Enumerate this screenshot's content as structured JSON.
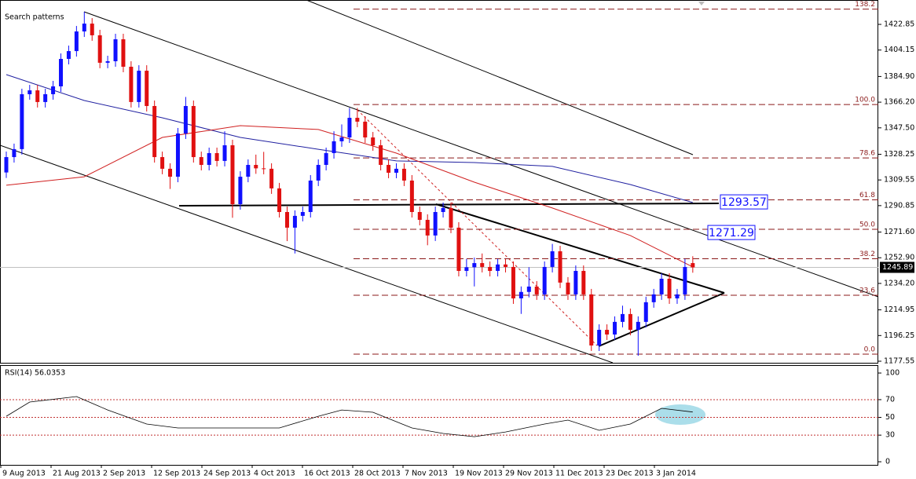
{
  "chart_data": {
    "type": "candlestick",
    "title": "Search patterns",
    "ylim": [
      1176.4,
      1440.6
    ],
    "yticks": [
      1422.85,
      1404.15,
      {
        "value": 1384.9,
        "label": "1384.90"
      },
      {
        "value": 1366.2,
        "label": "1366.20"
      },
      {
        "value": 1347.5,
        "label": "1347.50"
      },
      1328.25,
      1309.55,
      1290.85,
      {
        "value": 1271.6,
        "label": "1271.60"
      },
      {
        "value": 1252.9,
        "label": "1252.90"
      },
      {
        "value": 1234.2,
        "label": "1234.20"
      },
      1214.95,
      1196.25,
      1177.55
    ],
    "dates": [
      "9 Aug 2013",
      "21 Aug 2013",
      "2 Sep 2013",
      "12 Sep 2013",
      "24 Sep 2013",
      "4 Oct 2013",
      "16 Oct 2013",
      "28 Oct 2013",
      "7 Nov 2013",
      "19 Nov 2013",
      "29 Nov 2013",
      "11 Dec 2013",
      "23 Dec 2013",
      "3 Jan 2014"
    ],
    "up_color": "#1010ff",
    "down_color": "#e01010",
    "ohlc": [
      [
        1315.0,
        1330.2,
        1311.0,
        1326.2
      ],
      [
        1326.2,
        1336.0,
        1322.2,
        1332.0
      ],
      [
        1332.0,
        1376.0,
        1328.0,
        1372.0
      ],
      [
        1372.0,
        1378.8,
        1368.0,
        1374.8
      ],
      [
        1374.8,
        1378.8,
        1362.3,
        1366.3
      ],
      [
        1366.3,
        1376.0,
        1362.3,
        1372.0
      ],
      [
        1372.0,
        1381.7,
        1368.0,
        1377.7
      ],
      [
        1377.7,
        1401.7,
        1373.7,
        1397.7
      ],
      [
        1397.7,
        1407.4,
        1393.7,
        1403.4
      ],
      [
        1403.4,
        1421.7,
        1399.4,
        1417.7
      ],
      [
        1417.7,
        1432.0,
        1413.7,
        1423.4
      ],
      [
        1423.4,
        1427.4,
        1410.9,
        1414.9
      ],
      [
        1414.9,
        1418.9,
        1390.9,
        1394.9
      ],
      [
        1394.9,
        1400.0,
        1390.9,
        1396.0
      ],
      [
        1396.0,
        1416.0,
        1392.0,
        1412.0
      ],
      [
        1412.0,
        1416.0,
        1388.0,
        1392.0
      ],
      [
        1392.0,
        1396.0,
        1362.3,
        1366.3
      ],
      [
        1366.3,
        1393.1,
        1362.3,
        1389.1
      ],
      [
        1389.1,
        1393.1,
        1359.4,
        1363.4
      ],
      [
        1363.4,
        1367.4,
        1322.2,
        1326.2
      ],
      [
        1326.2,
        1330.2,
        1313.7,
        1317.7
      ],
      [
        1317.7,
        1321.7,
        1303.0,
        1311.9
      ],
      [
        1311.9,
        1347.4,
        1307.9,
        1343.4
      ],
      [
        1343.4,
        1370.0,
        1339.4,
        1363.4
      ],
      [
        1363.4,
        1367.4,
        1322.2,
        1326.2
      ],
      [
        1326.2,
        1330.2,
        1316.5,
        1320.5
      ],
      [
        1320.5,
        1333.1,
        1316.5,
        1329.1
      ],
      [
        1329.1,
        1333.1,
        1319.4,
        1323.4
      ],
      [
        1323.4,
        1345.0,
        1319.4,
        1334.8
      ],
      [
        1334.8,
        1338.8,
        1282.0,
        1291.9
      ],
      [
        1291.9,
        1315.9,
        1287.9,
        1311.9
      ],
      [
        1311.9,
        1324.5,
        1307.9,
        1320.5
      ],
      [
        1320.5,
        1328.0,
        1314.0,
        1318.0
      ],
      [
        1318.0,
        1330.0,
        1313.7,
        1317.7
      ],
      [
        1317.7,
        1321.7,
        1299.4,
        1303.4
      ],
      [
        1303.4,
        1307.4,
        1282.2,
        1286.2
      ],
      [
        1286.2,
        1290.2,
        1265.0,
        1274.8
      ],
      [
        1274.8,
        1287.4,
        1256.0,
        1283.4
      ],
      [
        1283.4,
        1290.2,
        1279.4,
        1286.2
      ],
      [
        1286.2,
        1313.1,
        1282.2,
        1309.1
      ],
      [
        1309.1,
        1324.5,
        1305.1,
        1320.5
      ],
      [
        1320.5,
        1333.1,
        1316.5,
        1329.1
      ],
      [
        1329.1,
        1345.0,
        1325.1,
        1337.7
      ],
      [
        1337.7,
        1350.0,
        1333.7,
        1340.5
      ],
      [
        1340.5,
        1362.0,
        1336.5,
        1354.8
      ],
      [
        1354.8,
        1362.0,
        1348.0,
        1352.0
      ],
      [
        1352.0,
        1356.0,
        1336.5,
        1340.5
      ],
      [
        1340.5,
        1344.5,
        1330.8,
        1334.8
      ],
      [
        1334.8,
        1338.8,
        1316.5,
        1320.5
      ],
      [
        1320.5,
        1324.5,
        1310.8,
        1314.8
      ],
      [
        1314.8,
        1321.7,
        1310.8,
        1317.7
      ],
      [
        1317.7,
        1321.7,
        1305.1,
        1309.1
      ],
      [
        1309.1,
        1313.1,
        1282.2,
        1286.2
      ],
      [
        1286.2,
        1290.2,
        1276.5,
        1280.5
      ],
      [
        1280.5,
        1284.5,
        1262.0,
        1269.1
      ],
      [
        1269.1,
        1290.2,
        1265.1,
        1286.2
      ],
      [
        1286.2,
        1293.1,
        1282.2,
        1289.1
      ],
      [
        1289.1,
        1293.1,
        1270.8,
        1274.8
      ],
      [
        1274.8,
        1278.8,
        1239.3,
        1243.3
      ],
      [
        1243.3,
        1252.0,
        1239.3,
        1246.0
      ],
      [
        1246.0,
        1253.0,
        1232.0,
        1249.0
      ],
      [
        1249.0,
        1256.0,
        1242.2,
        1246.2
      ],
      [
        1246.2,
        1250.2,
        1239.3,
        1243.3
      ],
      [
        1243.3,
        1252.0,
        1239.3,
        1248.0
      ],
      [
        1248.0,
        1252.0,
        1242.2,
        1246.2
      ],
      [
        1246.2,
        1250.2,
        1219.3,
        1223.3
      ],
      [
        1223.3,
        1232.0,
        1212.0,
        1228.0
      ],
      [
        1228.0,
        1246.0,
        1224.0,
        1231.9
      ],
      [
        1231.9,
        1235.9,
        1222.2,
        1226.2
      ],
      [
        1226.2,
        1250.2,
        1222.2,
        1246.2
      ],
      [
        1246.2,
        1263.0,
        1242.2,
        1257.6
      ],
      [
        1257.6,
        1261.6,
        1230.8,
        1234.8
      ],
      [
        1234.8,
        1238.8,
        1222.2,
        1226.2
      ],
      [
        1226.2,
        1247.3,
        1222.2,
        1243.3
      ],
      [
        1243.3,
        1247.3,
        1222.2,
        1226.2
      ],
      [
        1226.2,
        1230.2,
        1185.0,
        1189.0
      ],
      [
        1189.0,
        1204.4,
        1185.0,
        1200.4
      ],
      [
        1200.4,
        1204.4,
        1193.0,
        1197.0
      ],
      [
        1197.0,
        1210.2,
        1193.0,
        1206.2
      ],
      [
        1206.2,
        1218.0,
        1202.2,
        1211.9
      ],
      [
        1211.9,
        1215.9,
        1196.4,
        1200.4
      ],
      [
        1200.4,
        1210.2,
        1181.5,
        1206.2
      ],
      [
        1206.2,
        1224.5,
        1202.2,
        1220.5
      ],
      [
        1220.5,
        1230.2,
        1216.5,
        1226.2
      ],
      [
        1226.2,
        1241.6,
        1222.2,
        1237.6
      ],
      [
        1237.6,
        1241.6,
        1219.3,
        1223.3
      ],
      [
        1223.3,
        1230.2,
        1219.3,
        1226.2
      ],
      [
        1226.2,
        1252.0,
        1222.2,
        1246.2
      ],
      [
        1249.0,
        1254.0,
        1242.0,
        1245.89
      ]
    ],
    "overlays": [
      {
        "color": "#2020a0",
        "x": [
          0,
          10,
          20,
          30,
          40,
          50,
          60,
          70,
          80,
          88
        ],
        "values": [
          1386.3,
          1367.4,
          1354.8,
          1340.5,
          1331.9,
          1323.4,
          1322.2,
          1319.4,
          1306.2,
          1293.1
        ]
      },
      {
        "color": "#d02020",
        "x": [
          0,
          10,
          20,
          30,
          40,
          50,
          60,
          70,
          80,
          88
        ],
        "values": [
          1305.7,
          1311.9,
          1340.5,
          1349.1,
          1346.3,
          1329.1,
          1307.9,
          1289.1,
          1269.1,
          1246.2
        ]
      }
    ],
    "fib": {
      "low": 1182.7,
      "high": 1364.5,
      "levels": [
        138.2,
        {
          "value": 100,
          "label": "100.0"
        },
        78.6,
        61.8,
        {
          "value": 50,
          "label": "50.0"
        },
        38.2,
        23.6,
        {
          "value": 0,
          "label": "0.0"
        }
      ]
    },
    "price_labels": [
      1293.57,
      1271.29
    ],
    "last_price": 1245.89,
    "rsi": {
      "label": "RSI(14) 56.0353",
      "ylim": [
        -3.5,
        108
      ],
      "yticks": [
        100,
        70,
        50,
        30,
        0
      ],
      "levels": [
        70,
        50,
        30
      ],
      "x": [
        0,
        3,
        9,
        13,
        18,
        22,
        29,
        35,
        40,
        43,
        47,
        52,
        56,
        60,
        64,
        69,
        72,
        76,
        80,
        84,
        88
      ],
      "values": [
        51.3,
        67.3,
        73.5,
        58.4,
        42.5,
        38.1,
        38.1,
        38.1,
        51.3,
        58.4,
        55.8,
        38.1,
        31.9,
        28.3,
        33.6,
        42.5,
        46.9,
        35.4,
        42.5,
        60.2,
        56.0353
      ]
    }
  }
}
